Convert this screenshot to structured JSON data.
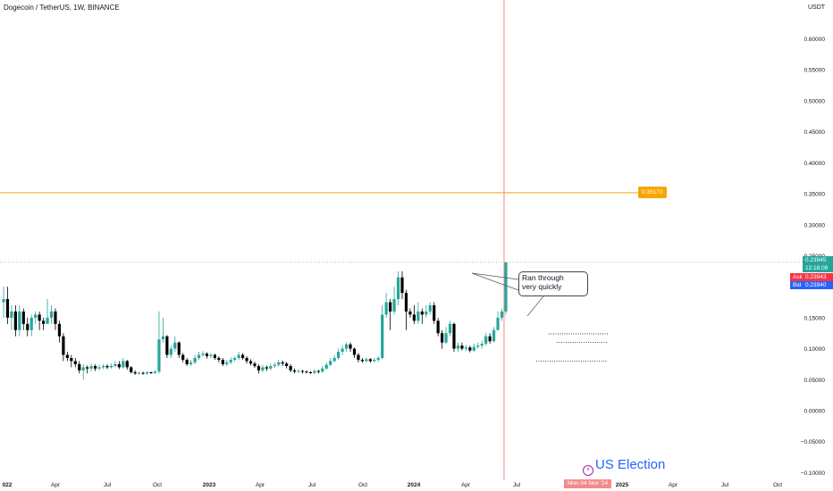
{
  "header": {
    "title": "Dogecoin / TetherUS, 1W, BINANCE",
    "currency": "USDT"
  },
  "price_tags": {
    "resistance": "0.35170",
    "last": "0.23945",
    "countdown": "12:18:09",
    "ask_label": "Ask",
    "ask": "0.23943",
    "bid_label": "Bid",
    "bid": "0.23940"
  },
  "annotation": {
    "line1": "Ran through",
    "line2": "very quickly"
  },
  "event": {
    "label": "US Election",
    "date": "Mon 04 Nov '24",
    "icon": "lightning-icon"
  },
  "colors": {
    "up": "#26a69a",
    "down": "#000000",
    "resistance": "#f7a600",
    "event_line": "#f28b8b",
    "ask": "#f23645",
    "bid": "#2962ff"
  },
  "chart_data": {
    "type": "candlestick",
    "y_ticks": [
      "0.60000",
      "0.55000",
      "0.50000",
      "0.45000",
      "0.40000",
      "0.35000",
      "0.30000",
      "0.25000",
      "0.20000",
      "0.15000",
      "0.10000",
      "0.05000",
      "0.00000",
      "−0.05000",
      "−0.10000"
    ],
    "x_ticks": [
      "022",
      "Apr",
      "Jul",
      "Oct",
      "2023",
      "Apr",
      "Jul",
      "Oct",
      "2024",
      "Apr",
      "Jul",
      "Oct",
      "2025",
      "Apr",
      "Jul",
      "Oct"
    ],
    "ylim": [
      -0.1,
      0.62
    ],
    "resistance_level": 0.3517,
    "support_levels": [
      0.124,
      0.11,
      0.08
    ],
    "candles": [
      [
        0.175,
        0.18,
        0.2,
        0.15
      ],
      [
        0.18,
        0.15,
        0.2,
        0.14
      ],
      [
        0.15,
        0.16,
        0.17,
        0.13
      ],
      [
        0.16,
        0.13,
        0.17,
        0.12
      ],
      [
        0.13,
        0.16,
        0.17,
        0.12
      ],
      [
        0.16,
        0.14,
        0.165,
        0.13
      ],
      [
        0.14,
        0.13,
        0.15,
        0.12
      ],
      [
        0.13,
        0.15,
        0.155,
        0.12
      ],
      [
        0.15,
        0.155,
        0.16,
        0.14
      ],
      [
        0.155,
        0.145,
        0.16,
        0.13
      ],
      [
        0.145,
        0.14,
        0.15,
        0.13
      ],
      [
        0.14,
        0.15,
        0.18,
        0.14
      ],
      [
        0.15,
        0.16,
        0.17,
        0.14
      ],
      [
        0.16,
        0.14,
        0.165,
        0.13
      ],
      [
        0.14,
        0.12,
        0.145,
        0.11
      ],
      [
        0.12,
        0.09,
        0.125,
        0.08
      ],
      [
        0.09,
        0.085,
        0.095,
        0.08
      ],
      [
        0.085,
        0.08,
        0.09,
        0.07
      ],
      [
        0.08,
        0.075,
        0.085,
        0.07
      ],
      [
        0.075,
        0.065,
        0.08,
        0.06
      ],
      [
        0.065,
        0.07,
        0.075,
        0.05
      ],
      [
        0.07,
        0.068,
        0.073,
        0.06
      ],
      [
        0.068,
        0.072,
        0.076,
        0.064
      ],
      [
        0.072,
        0.068,
        0.075,
        0.064
      ],
      [
        0.068,
        0.07,
        0.074,
        0.065
      ],
      [
        0.07,
        0.072,
        0.075,
        0.067
      ],
      [
        0.072,
        0.07,
        0.075,
        0.067
      ],
      [
        0.07,
        0.072,
        0.076,
        0.068
      ],
      [
        0.072,
        0.075,
        0.08,
        0.07
      ],
      [
        0.075,
        0.07,
        0.08,
        0.067
      ],
      [
        0.07,
        0.08,
        0.085,
        0.068
      ],
      [
        0.08,
        0.07,
        0.082,
        0.066
      ],
      [
        0.07,
        0.062,
        0.072,
        0.06
      ],
      [
        0.062,
        0.06,
        0.065,
        0.058
      ],
      [
        0.06,
        0.061,
        0.063,
        0.058
      ],
      [
        0.061,
        0.06,
        0.063,
        0.058
      ],
      [
        0.06,
        0.062,
        0.064,
        0.058
      ],
      [
        0.062,
        0.061,
        0.063,
        0.059
      ],
      [
        0.061,
        0.063,
        0.065,
        0.059
      ],
      [
        0.063,
        0.115,
        0.16,
        0.06
      ],
      [
        0.115,
        0.12,
        0.15,
        0.11
      ],
      [
        0.12,
        0.09,
        0.122,
        0.085
      ],
      [
        0.09,
        0.1,
        0.105,
        0.085
      ],
      [
        0.1,
        0.11,
        0.12,
        0.095
      ],
      [
        0.11,
        0.09,
        0.112,
        0.085
      ],
      [
        0.09,
        0.082,
        0.093,
        0.078
      ],
      [
        0.082,
        0.075,
        0.085,
        0.072
      ],
      [
        0.075,
        0.078,
        0.082,
        0.072
      ],
      [
        0.078,
        0.085,
        0.09,
        0.075
      ],
      [
        0.085,
        0.09,
        0.095,
        0.082
      ],
      [
        0.09,
        0.092,
        0.096,
        0.087
      ],
      [
        0.092,
        0.088,
        0.094,
        0.084
      ],
      [
        0.088,
        0.09,
        0.093,
        0.085
      ],
      [
        0.09,
        0.085,
        0.092,
        0.082
      ],
      [
        0.085,
        0.082,
        0.088,
        0.078
      ],
      [
        0.082,
        0.075,
        0.085,
        0.072
      ],
      [
        0.075,
        0.078,
        0.082,
        0.072
      ],
      [
        0.078,
        0.082,
        0.086,
        0.075
      ],
      [
        0.082,
        0.085,
        0.088,
        0.079
      ],
      [
        0.085,
        0.09,
        0.095,
        0.082
      ],
      [
        0.09,
        0.085,
        0.093,
        0.082
      ],
      [
        0.085,
        0.08,
        0.088,
        0.076
      ],
      [
        0.08,
        0.076,
        0.083,
        0.073
      ],
      [
        0.076,
        0.072,
        0.079,
        0.069
      ],
      [
        0.072,
        0.065,
        0.075,
        0.06
      ],
      [
        0.065,
        0.07,
        0.074,
        0.062
      ],
      [
        0.07,
        0.068,
        0.073,
        0.064
      ],
      [
        0.068,
        0.072,
        0.076,
        0.065
      ],
      [
        0.072,
        0.074,
        0.078,
        0.069
      ],
      [
        0.074,
        0.078,
        0.082,
        0.071
      ],
      [
        0.078,
        0.076,
        0.081,
        0.072
      ],
      [
        0.076,
        0.072,
        0.079,
        0.068
      ],
      [
        0.072,
        0.065,
        0.075,
        0.062
      ],
      [
        0.065,
        0.063,
        0.068,
        0.06
      ],
      [
        0.063,
        0.064,
        0.067,
        0.061
      ],
      [
        0.064,
        0.063,
        0.066,
        0.06
      ],
      [
        0.063,
        0.062,
        0.065,
        0.06
      ],
      [
        0.062,
        0.061,
        0.064,
        0.059
      ],
      [
        0.061,
        0.064,
        0.067,
        0.059
      ],
      [
        0.064,
        0.063,
        0.066,
        0.06
      ],
      [
        0.063,
        0.068,
        0.072,
        0.061
      ],
      [
        0.068,
        0.074,
        0.078,
        0.066
      ],
      [
        0.074,
        0.08,
        0.085,
        0.072
      ],
      [
        0.08,
        0.085,
        0.09,
        0.078
      ],
      [
        0.085,
        0.095,
        0.1,
        0.082
      ],
      [
        0.095,
        0.1,
        0.105,
        0.09
      ],
      [
        0.1,
        0.107,
        0.11,
        0.095
      ],
      [
        0.107,
        0.1,
        0.11,
        0.095
      ],
      [
        0.1,
        0.09,
        0.102,
        0.085
      ],
      [
        0.09,
        0.082,
        0.093,
        0.078
      ],
      [
        0.082,
        0.08,
        0.085,
        0.077
      ],
      [
        0.08,
        0.083,
        0.086,
        0.078
      ],
      [
        0.083,
        0.08,
        0.085,
        0.077
      ],
      [
        0.08,
        0.082,
        0.085,
        0.078
      ],
      [
        0.082,
        0.085,
        0.088,
        0.079
      ],
      [
        0.085,
        0.155,
        0.17,
        0.083
      ],
      [
        0.155,
        0.175,
        0.19,
        0.15
      ],
      [
        0.175,
        0.16,
        0.18,
        0.13
      ],
      [
        0.16,
        0.18,
        0.2,
        0.155
      ],
      [
        0.18,
        0.215,
        0.225,
        0.17
      ],
      [
        0.215,
        0.19,
        0.225,
        0.18
      ],
      [
        0.19,
        0.16,
        0.195,
        0.13
      ],
      [
        0.16,
        0.155,
        0.165,
        0.15
      ],
      [
        0.155,
        0.145,
        0.17,
        0.14
      ],
      [
        0.145,
        0.16,
        0.175,
        0.14
      ],
      [
        0.16,
        0.155,
        0.165,
        0.14
      ],
      [
        0.155,
        0.16,
        0.17,
        0.15
      ],
      [
        0.16,
        0.17,
        0.175,
        0.155
      ],
      [
        0.17,
        0.145,
        0.175,
        0.14
      ],
      [
        0.145,
        0.125,
        0.15,
        0.12
      ],
      [
        0.125,
        0.11,
        0.13,
        0.1
      ],
      [
        0.11,
        0.125,
        0.135,
        0.108
      ],
      [
        0.125,
        0.14,
        0.145,
        0.12
      ],
      [
        0.14,
        0.1,
        0.142,
        0.095
      ],
      [
        0.1,
        0.105,
        0.11,
        0.095
      ],
      [
        0.105,
        0.1,
        0.11,
        0.097
      ],
      [
        0.1,
        0.102,
        0.106,
        0.096
      ],
      [
        0.102,
        0.097,
        0.105,
        0.094
      ],
      [
        0.097,
        0.103,
        0.108,
        0.095
      ],
      [
        0.103,
        0.105,
        0.11,
        0.1
      ],
      [
        0.105,
        0.108,
        0.113,
        0.1
      ],
      [
        0.108,
        0.12,
        0.125,
        0.105
      ],
      [
        0.12,
        0.112,
        0.125,
        0.108
      ],
      [
        0.112,
        0.13,
        0.135,
        0.11
      ],
      [
        0.13,
        0.15,
        0.16,
        0.13
      ],
      [
        0.15,
        0.16,
        0.165,
        0.145
      ],
      [
        0.16,
        0.2394,
        0.2394,
        0.155
      ]
    ]
  }
}
